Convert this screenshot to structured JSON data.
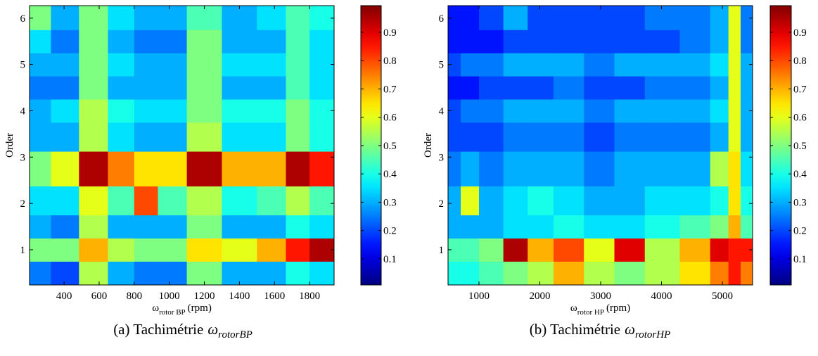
{
  "chart_data": [
    {
      "type": "heatmap",
      "colormap": "jet",
      "x": [
        250,
        400,
        570,
        730,
        870,
        1000,
        1200,
        1400,
        1600,
        1730,
        1870
      ],
      "y": [
        0.5,
        1,
        1.5,
        2,
        2.75,
        3.5,
        4,
        4.5,
        5,
        5.5,
        6
      ],
      "z": [
        [
          0.25,
          0.2,
          0.55,
          0.3,
          0.25,
          0.25,
          0.5,
          0.3,
          0.3,
          0.4,
          0.35
        ],
        [
          0.5,
          0.5,
          0.7,
          0.55,
          0.5,
          0.5,
          0.65,
          0.6,
          0.7,
          0.85,
          0.95
        ],
        [
          0.3,
          0.25,
          0.55,
          0.3,
          0.3,
          0.3,
          0.5,
          0.3,
          0.3,
          0.4,
          0.35
        ],
        [
          0.35,
          0.35,
          0.6,
          0.45,
          0.8,
          0.45,
          0.55,
          0.4,
          0.45,
          0.55,
          0.45
        ],
        [
          0.5,
          0.6,
          0.95,
          0.75,
          0.65,
          0.65,
          0.95,
          0.7,
          0.7,
          0.95,
          0.85
        ],
        [
          0.3,
          0.3,
          0.55,
          0.35,
          0.3,
          0.3,
          0.55,
          0.35,
          0.35,
          0.5,
          0.4
        ],
        [
          0.3,
          0.35,
          0.55,
          0.4,
          0.35,
          0.35,
          0.5,
          0.4,
          0.4,
          0.5,
          0.4
        ],
        [
          0.25,
          0.25,
          0.5,
          0.3,
          0.3,
          0.3,
          0.5,
          0.3,
          0.3,
          0.45,
          0.35
        ],
        [
          0.3,
          0.3,
          0.5,
          0.35,
          0.3,
          0.3,
          0.5,
          0.35,
          0.35,
          0.45,
          0.35
        ],
        [
          0.35,
          0.25,
          0.5,
          0.3,
          0.25,
          0.25,
          0.5,
          0.3,
          0.3,
          0.45,
          0.35
        ],
        [
          0.5,
          0.3,
          0.5,
          0.35,
          0.3,
          0.3,
          0.45,
          0.3,
          0.35,
          0.45,
          0.4
        ]
      ],
      "xlim": [
        203,
        1940
      ],
      "ylim": [
        0.24,
        6.27
      ],
      "xticks": [
        400,
        600,
        800,
        1000,
        1200,
        1400,
        1600,
        1800
      ],
      "yticks": [
        1,
        2,
        3,
        4,
        5,
        6
      ],
      "clim": [
        0.008,
        0.994
      ],
      "cticks": [
        0.1,
        0.2,
        0.3,
        0.4,
        0.5,
        0.6,
        0.7,
        0.8,
        0.9
      ],
      "xlabel": {
        "symbol": "ω",
        "subscript": "rotor BP",
        "unit": "(rpm)"
      },
      "ylabel": "Order",
      "caption": {
        "text": "(a) Tachimétrie",
        "symbol": "ω",
        "subscript": "rotorBP"
      }
    },
    {
      "type": "heatmap",
      "colormap": "jet",
      "x": [
        600,
        800,
        1200,
        1600,
        2000,
        2450,
        3000,
        3450,
        4000,
        4600,
        5000,
        5200,
        5400
      ],
      "y": [
        0.5,
        1,
        1.5,
        2,
        2.75,
        3.5,
        4,
        4.5,
        5,
        5.5,
        6
      ],
      "z": [
        [
          0.4,
          0.4,
          0.45,
          0.5,
          0.55,
          0.7,
          0.55,
          0.5,
          0.55,
          0.65,
          0.75,
          0.85,
          0.75
        ],
        [
          0.45,
          0.45,
          0.5,
          0.95,
          0.7,
          0.8,
          0.6,
          0.9,
          0.55,
          0.7,
          0.9,
          0.85,
          0.85
        ],
        [
          0.3,
          0.3,
          0.3,
          0.35,
          0.35,
          0.4,
          0.35,
          0.35,
          0.4,
          0.45,
          0.5,
          0.7,
          0.45
        ],
        [
          0.3,
          0.6,
          0.3,
          0.35,
          0.4,
          0.35,
          0.3,
          0.3,
          0.35,
          0.35,
          0.4,
          0.65,
          0.4
        ],
        [
          0.25,
          0.3,
          0.25,
          0.3,
          0.3,
          0.3,
          0.25,
          0.3,
          0.3,
          0.3,
          0.55,
          0.65,
          0.35
        ],
        [
          0.2,
          0.2,
          0.2,
          0.25,
          0.25,
          0.25,
          0.2,
          0.25,
          0.25,
          0.25,
          0.3,
          0.6,
          0.3
        ],
        [
          0.2,
          0.25,
          0.25,
          0.3,
          0.3,
          0.3,
          0.25,
          0.3,
          0.3,
          0.3,
          0.35,
          0.6,
          0.3
        ],
        [
          0.15,
          0.15,
          0.2,
          0.2,
          0.2,
          0.25,
          0.2,
          0.2,
          0.25,
          0.25,
          0.3,
          0.6,
          0.3
        ],
        [
          0.2,
          0.25,
          0.25,
          0.3,
          0.3,
          0.3,
          0.25,
          0.3,
          0.3,
          0.3,
          0.35,
          0.6,
          0.3
        ],
        [
          0.15,
          0.15,
          0.15,
          0.2,
          0.2,
          0.2,
          0.2,
          0.2,
          0.2,
          0.25,
          0.3,
          0.6,
          0.25
        ],
        [
          0.15,
          0.15,
          0.2,
          0.3,
          0.2,
          0.2,
          0.2,
          0.2,
          0.25,
          0.25,
          0.3,
          0.6,
          0.25
        ]
      ],
      "xlim": [
        491,
        5497
      ],
      "ylim": [
        0.24,
        6.27
      ],
      "xticks": [
        1000,
        2000,
        3000,
        4000,
        5000
      ],
      "yticks": [
        1,
        2,
        3,
        4,
        5,
        6
      ],
      "clim": [
        0.008,
        0.994
      ],
      "cticks": [
        0.1,
        0.2,
        0.3,
        0.4,
        0.5,
        0.6,
        0.7,
        0.8,
        0.9
      ],
      "xlabel": {
        "symbol": "ω",
        "subscript": "rotor HP",
        "unit": "(rpm)"
      },
      "ylabel": "Order",
      "caption": {
        "text": "(b) Tachimétrie",
        "symbol": "ω",
        "subscript": "rotorHP"
      }
    }
  ]
}
